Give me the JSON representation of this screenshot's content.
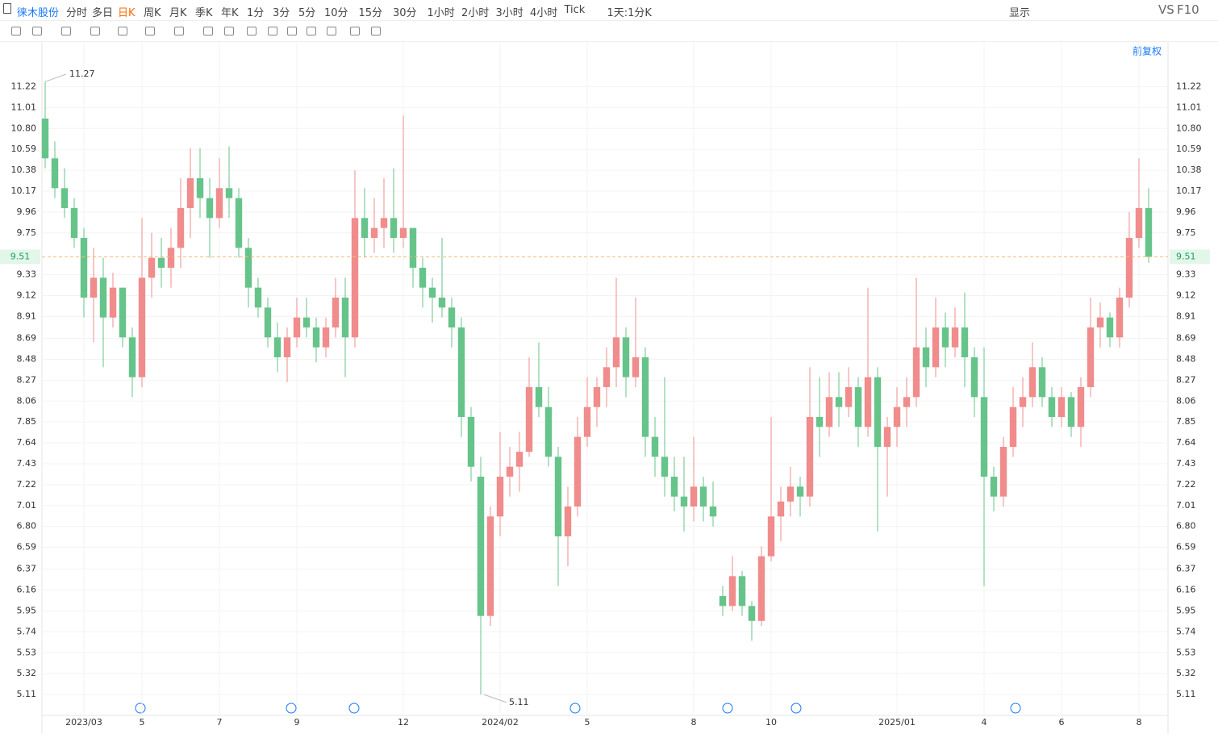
{
  "toolbar": {
    "stock": "徕木股份",
    "periods": [
      "分时",
      "多日",
      "日K",
      "周K",
      "月K",
      "季K",
      "年K",
      "1分",
      "3分",
      "5分",
      "10分",
      "15分",
      "30分",
      "1小时",
      "2小时",
      "3小时",
      "4小时",
      "Tick",
      "1天:1分K"
    ],
    "display": "显示",
    "vs": "VS",
    "f10": "F10"
  },
  "chart_data": {
    "type": "candlestick",
    "adjust_mode": "前复权",
    "categories": [
      null,
      null,
      null,
      null,
      "2023/03",
      null,
      null,
      null,
      null,
      null,
      "5",
      null,
      null,
      null,
      null,
      null,
      null,
      null,
      "7",
      null,
      null,
      null,
      null,
      null,
      null,
      null,
      "9",
      null,
      null,
      null,
      null,
      null,
      null,
      null,
      null,
      null,
      null,
      "12",
      null,
      null,
      null,
      null,
      null,
      null,
      null,
      null,
      null,
      "2024/02",
      null,
      null,
      null,
      null,
      null,
      null,
      null,
      null,
      "5",
      null,
      null,
      null,
      null,
      null,
      null,
      null,
      null,
      null,
      null,
      "8",
      null,
      null,
      null,
      null,
      null,
      null,
      null,
      "10",
      null,
      null,
      null,
      null,
      null,
      null,
      null,
      null,
      null,
      null,
      null,
      null,
      "2025/01",
      null,
      null,
      null,
      null,
      null,
      null,
      null,
      null,
      "4",
      null,
      null,
      null,
      null,
      null,
      null,
      null,
      "6",
      null,
      null,
      null,
      null,
      null,
      null,
      null,
      "8",
      null
    ],
    "open": [
      10.9,
      10.5,
      10.2,
      10.0,
      9.7,
      9.1,
      9.3,
      8.9,
      9.2,
      8.7,
      8.3,
      9.3,
      9.5,
      9.4,
      9.6,
      10.0,
      10.3,
      10.1,
      9.9,
      10.2,
      10.1,
      9.6,
      9.2,
      9.0,
      8.7,
      8.5,
      8.7,
      8.9,
      8.8,
      8.6,
      8.8,
      9.1,
      8.7,
      9.9,
      9.7,
      9.8,
      9.9,
      9.7,
      9.8,
      9.4,
      9.2,
      9.1,
      9.0,
      8.8,
      7.9,
      7.3,
      5.9,
      6.9,
      7.3,
      7.4,
      7.55,
      8.2,
      8.0,
      7.5,
      6.7,
      7.0,
      7.7,
      8.0,
      8.2,
      8.4,
      8.7,
      8.3,
      8.5,
      7.7,
      7.5,
      7.3,
      7.1,
      7.0,
      7.2,
      7.0,
      6.1,
      6.0,
      6.3,
      6.0,
      5.85,
      6.5,
      6.9,
      7.05,
      7.2,
      7.1,
      7.9,
      7.8,
      8.1,
      8.0,
      8.2,
      7.8,
      8.3,
      7.6,
      7.8,
      8.0,
      8.1,
      8.6,
      8.4,
      8.8,
      8.6,
      8.8,
      8.5,
      8.1,
      7.3,
      7.1,
      7.6,
      8.0,
      8.1,
      8.4,
      8.1,
      7.9,
      8.1,
      7.8,
      8.2,
      8.8,
      8.9,
      8.7,
      9.1,
      9.7,
      10.0
    ],
    "high": [
      11.27,
      10.67,
      10.4,
      10.1,
      9.8,
      9.6,
      9.5,
      9.35,
      9.2,
      8.8,
      9.9,
      9.75,
      9.7,
      9.8,
      10.3,
      10.6,
      10.6,
      10.3,
      10.5,
      10.62,
      10.2,
      9.7,
      9.3,
      9.1,
      8.85,
      8.8,
      9.1,
      9.1,
      8.9,
      8.9,
      9.3,
      9.3,
      10.38,
      10.2,
      10.1,
      10.3,
      10.4,
      10.93,
      9.8,
      9.5,
      9.3,
      9.7,
      9.1,
      8.9,
      8.0,
      7.5,
      7.0,
      7.75,
      7.6,
      7.75,
      8.5,
      8.65,
      8.2,
      7.6,
      7.2,
      7.9,
      8.3,
      8.3,
      8.6,
      9.3,
      8.8,
      9.1,
      8.6,
      7.9,
      8.3,
      7.5,
      7.5,
      7.7,
      7.3,
      7.25,
      6.2,
      6.5,
      6.35,
      6.05,
      6.6,
      7.9,
      7.2,
      7.4,
      7.3,
      8.4,
      8.3,
      8.35,
      8.35,
      8.4,
      8.3,
      9.2,
      8.4,
      7.9,
      8.2,
      8.3,
      9.3,
      8.8,
      9.1,
      8.95,
      9.0,
      9.15,
      8.6,
      8.6,
      7.4,
      7.7,
      8.2,
      8.3,
      8.65,
      8.5,
      8.2,
      8.2,
      8.15,
      8.3,
      9.1,
      9.05,
      8.95,
      9.2,
      9.96,
      10.5,
      10.2
    ],
    "low": [
      10.4,
      10.1,
      9.9,
      9.6,
      8.9,
      8.65,
      8.4,
      8.8,
      8.6,
      8.1,
      8.2,
      9.1,
      9.2,
      9.2,
      9.4,
      9.7,
      9.9,
      9.5,
      9.8,
      9.9,
      9.5,
      9.0,
      8.9,
      8.6,
      8.35,
      8.25,
      8.6,
      8.7,
      8.45,
      8.5,
      8.7,
      8.3,
      8.6,
      9.5,
      9.55,
      9.6,
      9.55,
      9.6,
      9.2,
      9.0,
      8.85,
      8.9,
      8.6,
      7.7,
      7.25,
      5.11,
      5.8,
      6.7,
      7.1,
      7.15,
      7.5,
      7.9,
      7.4,
      6.2,
      6.4,
      6.9,
      7.6,
      7.8,
      8.0,
      8.2,
      8.1,
      8.2,
      7.5,
      7.3,
      7.1,
      6.95,
      6.75,
      6.85,
      6.85,
      6.8,
      5.9,
      5.95,
      5.9,
      5.65,
      5.8,
      6.45,
      6.65,
      6.9,
      6.9,
      7.0,
      7.5,
      7.7,
      7.8,
      7.9,
      7.6,
      7.7,
      6.75,
      7.1,
      7.6,
      7.8,
      8.0,
      8.2,
      8.3,
      8.4,
      8.5,
      8.2,
      7.9,
      6.2,
      6.95,
      7.0,
      7.5,
      7.8,
      8.0,
      8.0,
      7.8,
      7.8,
      7.7,
      7.6,
      8.1,
      8.6,
      8.6,
      8.6,
      9.0,
      9.6,
      9.45
    ],
    "close": [
      10.5,
      10.2,
      10.0,
      9.7,
      9.1,
      9.3,
      8.9,
      9.2,
      8.7,
      8.3,
      9.3,
      9.5,
      9.4,
      9.6,
      10.0,
      10.3,
      10.1,
      9.9,
      10.2,
      10.1,
      9.6,
      9.2,
      9.0,
      8.7,
      8.5,
      8.7,
      8.9,
      8.8,
      8.6,
      8.8,
      9.1,
      8.7,
      9.9,
      9.7,
      9.8,
      9.9,
      9.7,
      9.8,
      9.4,
      9.2,
      9.1,
      9.0,
      8.8,
      7.9,
      7.4,
      5.9,
      6.9,
      7.3,
      7.4,
      7.55,
      8.2,
      8.0,
      7.5,
      6.7,
      7.0,
      7.7,
      8.0,
      8.2,
      8.4,
      8.7,
      8.3,
      8.5,
      7.7,
      7.5,
      7.3,
      7.1,
      7.0,
      7.2,
      7.0,
      6.9,
      6.0,
      6.3,
      6.0,
      5.85,
      6.5,
      6.9,
      7.05,
      7.2,
      7.1,
      7.9,
      7.8,
      8.1,
      8.0,
      8.2,
      7.8,
      8.3,
      7.6,
      7.8,
      8.0,
      8.1,
      8.6,
      8.4,
      8.8,
      8.6,
      8.8,
      8.5,
      8.1,
      7.3,
      7.1,
      7.6,
      8.0,
      8.1,
      8.4,
      8.1,
      7.9,
      8.1,
      7.8,
      8.2,
      8.8,
      8.9,
      8.7,
      9.1,
      9.7,
      10.0,
      9.51
    ],
    "up_color": "#f08c8c",
    "down_color": "#66c48a",
    "max_label": 11.27,
    "min_label": 5.11,
    "current_price": 9.51,
    "ylim": [
      4.9,
      11.67
    ],
    "yticks": [
      5.11,
      5.32,
      5.53,
      5.74,
      5.95,
      6.16,
      6.37,
      6.59,
      {
        "value": 6.8,
        "label": "6.80"
      },
      7.01,
      7.22,
      7.43,
      7.64,
      7.85,
      8.06,
      8.27,
      8.48,
      8.69,
      8.91,
      9.12,
      9.33,
      9.75,
      9.96,
      10.17,
      10.38,
      10.59,
      {
        "value": 10.8,
        "label": "10.80"
      },
      11.01,
      11.22
    ],
    "grid": true
  }
}
